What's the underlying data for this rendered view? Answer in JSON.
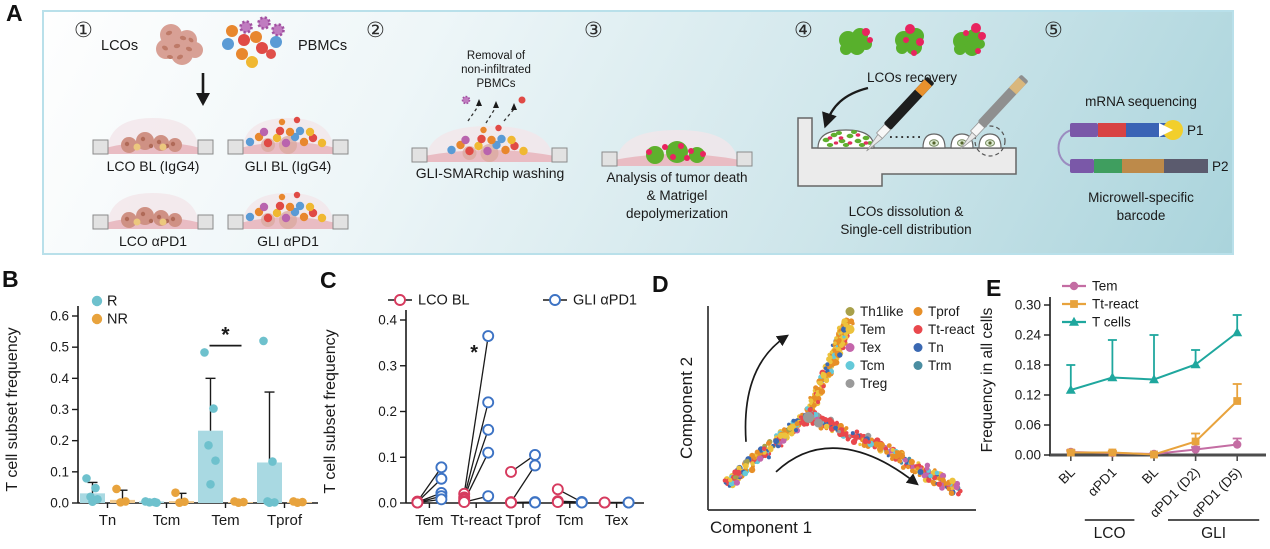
{
  "panels": {
    "a": "A",
    "b": "B",
    "c": "C",
    "d": "D",
    "e": "E"
  },
  "panelA": {
    "steps": [
      "①",
      "②",
      "③",
      "④",
      "⑤"
    ],
    "step1": {
      "lcos": "LCOs",
      "pbmcs": "PBMCs",
      "dishes": [
        "LCO BL (IgG4)",
        "GLI BL (IgG4)",
        "LCO αPD1",
        "GLI αPD1"
      ]
    },
    "step2": {
      "note_lines": [
        "Removal of",
        "non-infiltrated",
        "PBMCs"
      ],
      "label": "GLI-SMARchip washing"
    },
    "step3": {
      "label_lines": [
        "Analysis of tumor death",
        "& Matrigel",
        "depolymerization"
      ]
    },
    "step4": {
      "recovery": "LCOs recovery",
      "dots": "......",
      "label_lines": [
        "LCOs dissolution &",
        "Single-cell distribution"
      ]
    },
    "step5": {
      "title": "mRNA sequencing",
      "p1": "P1",
      "p2": "P2",
      "label_lines": [
        "Microwell-specific",
        "barcode"
      ]
    }
  },
  "chart_data": [
    {
      "id": "B",
      "type": "bar",
      "ylabel": "T cell subset frequency",
      "categories": [
        "Tn",
        "Tcm",
        "Tem",
        "Tprof"
      ],
      "ylim": [
        0,
        0.6
      ],
      "yticks": [
        0.0,
        0.1,
        0.2,
        0.3,
        0.4,
        0.5,
        0.6
      ],
      "legend": [
        {
          "name": "R",
          "color": "#6ec1cd"
        },
        {
          "name": "NR",
          "color": "#e8a33d"
        }
      ],
      "series": [
        {
          "name": "R",
          "bar_color": "#a9d9e2",
          "point_color": "#6ec1cd",
          "bars": [
            0.031,
            0.005,
            0.232,
            0.13
          ],
          "errors_up": [
            0.066,
            0.008,
            0.4,
            0.356
          ],
          "points": [
            [
              0.079,
              0.048,
              0.02,
              0.012,
              0.004
            ],
            [
              0.005,
              0.003,
              0.002,
              0.001
            ],
            [
              0.483,
              0.303,
              0.185,
              0.136,
              0.06
            ],
            [
              0.52,
              0.133,
              0.005,
              0.002,
              0.001
            ]
          ]
        },
        {
          "name": "NR",
          "bar_color": "#f0ca90",
          "point_color": "#e8a33d",
          "bars": [
            0.01,
            0.006,
            0.003,
            0.003
          ],
          "errors_up": [
            0.041,
            0.031,
            0,
            0
          ],
          "points": [
            [
              0.045,
              0.005,
              0.002
            ],
            [
              0.033,
              0.004,
              0.001
            ],
            [
              0.005,
              0.003,
              0.001
            ],
            [
              0.005,
              0.003,
              0.001
            ]
          ]
        }
      ],
      "significance": {
        "category": "Tem",
        "label": "*",
        "y": 0.505
      }
    },
    {
      "id": "C",
      "type": "paired-scatter",
      "ylabel": "T cell subset frequency",
      "categories": [
        "Tem",
        "Tt-react",
        "Tprof",
        "Tcm",
        "Tex"
      ],
      "ylim": [
        0,
        0.4
      ],
      "yticks": [
        0.0,
        0.1,
        0.2,
        0.3,
        0.4
      ],
      "legend": [
        {
          "name": "LCO BL",
          "color": "#d63a5e"
        },
        {
          "name": "GLI αPD1",
          "color": "#3d73c4"
        }
      ],
      "pairs": [
        [
          [
            0.003,
            0.078
          ],
          [
            0.002,
            0.053
          ],
          [
            0.002,
            0.022
          ],
          [
            0.001,
            0.015
          ],
          [
            0.001,
            0.008
          ]
        ],
        [
          [
            0.02,
            0.365
          ],
          [
            0.012,
            0.22
          ],
          [
            0.008,
            0.16
          ],
          [
            0.004,
            0.11
          ],
          [
            0.002,
            0.015
          ]
        ],
        [
          [
            0.068,
            0.105
          ],
          [
            0.002,
            0.082
          ],
          [
            0.001,
            0.002
          ],
          [
            0.001,
            0.001
          ]
        ],
        [
          [
            0.03,
            0.002
          ],
          [
            0.004,
            0.002
          ],
          [
            0.002,
            0.001
          ]
        ],
        [
          [
            0.001,
            0.001
          ],
          [
            0.001,
            0.001
          ]
        ]
      ],
      "significance": {
        "category": "Tt-react",
        "label": "*",
        "y": 0.315
      }
    },
    {
      "id": "D",
      "type": "scatter",
      "subtype": "pseudotime-trajectory",
      "xlabel": "Component 1",
      "ylabel": "Component 2",
      "legend_cols": [
        [
          {
            "name": "Th1like",
            "color": "#a8a04a"
          },
          {
            "name": "Tem",
            "color": "#ecc23d"
          },
          {
            "name": "Tex",
            "color": "#c465ab"
          },
          {
            "name": "Tcm",
            "color": "#64c9d9"
          },
          {
            "name": "Treg",
            "color": "#9a9a9a"
          }
        ],
        [
          {
            "name": "Tprof",
            "color": "#e78f28"
          },
          {
            "name": "Tt-react",
            "color": "#e9484d"
          },
          {
            "name": "Tn",
            "color": "#3a68b2"
          },
          {
            "name": "Trm",
            "color": "#4a8da1"
          }
        ]
      ],
      "junction_dots": [
        [
          37,
          45
        ],
        [
          41,
          42
        ]
      ],
      "branches": [
        {
          "from": [
            5,
            10
          ],
          "to": [
            37,
            46
          ],
          "n": 180,
          "spread": 2.8,
          "palette": {
            "#ecc23d": 0.26,
            "#e78f28": 0.18,
            "#3a68b2": 0.22,
            "#e9484d": 0.14,
            "#64c9d9": 0.07,
            "#a8a04a": 0.06,
            "#c465ab": 0.03,
            "#9a9a9a": 0.04
          }
        },
        {
          "from": [
            37,
            46
          ],
          "to": [
            46,
            74
          ],
          "n": 85,
          "spread": 2.6,
          "palette": {
            "#ecc23d": 0.42,
            "#e78f28": 0.34,
            "#64c9d9": 0.08,
            "#3a68b2": 0.08,
            "#e9484d": 0.08
          }
        },
        {
          "from": [
            46,
            74
          ],
          "to": [
            53,
            96
          ],
          "n": 105,
          "spread": 2.8,
          "palette": {
            "#ecc23d": 0.4,
            "#e78f28": 0.45,
            "#64c9d9": 0.06,
            "#3a68b2": 0.04,
            "#e9484d": 0.05
          }
        },
        {
          "from": [
            37,
            46
          ],
          "to": [
            66,
            29
          ],
          "n": 135,
          "spread": 3.0,
          "palette": {
            "#e9484d": 0.55,
            "#e78f28": 0.15,
            "#ecc23d": 0.1,
            "#3a68b2": 0.08,
            "#9a9a9a": 0.05,
            "#64c9d9": 0.04,
            "#c465ab": 0.03
          }
        },
        {
          "from": [
            66,
            29
          ],
          "to": [
            97,
            6
          ],
          "n": 145,
          "spread": 3.2,
          "palette": {
            "#e78f28": 0.42,
            "#e9484d": 0.16,
            "#c465ab": 0.14,
            "#3a68b2": 0.1,
            "#ecc23d": 0.1,
            "#64c9d9": 0.04,
            "#4a8da1": 0.04
          }
        }
      ],
      "arrows": [
        {
          "from": [
            12,
            32
          ],
          "to": [
            28,
            88
          ]
        },
        {
          "from": [
            24,
            16
          ],
          "to": [
            80,
            10
          ]
        }
      ]
    },
    {
      "id": "E",
      "type": "line",
      "ylabel": "Frequency in all cells",
      "categories": [
        "BL",
        "αPD1",
        "BL",
        "αPD1 (D2)",
        "αPD1 (D5)"
      ],
      "ylim": [
        0,
        0.3
      ],
      "yticks": [
        0.0,
        0.06,
        0.12,
        0.18,
        0.24,
        0.3
      ],
      "groups": [
        {
          "name": "LCO",
          "span": [
            0,
            1
          ]
        },
        {
          "name": "GLI",
          "span": [
            2,
            4
          ]
        }
      ],
      "series": [
        {
          "name": "Tem",
          "color": "#c46da3",
          "marker": "circle",
          "values": [
            0.006,
            0.004,
            0.002,
            0.011,
            0.021
          ],
          "err_up": [
            0.004,
            0.003,
            0.002,
            0.005,
            0.012
          ]
        },
        {
          "name": "Tt-react",
          "color": "#e8a33d",
          "marker": "square",
          "values": [
            0.005,
            0.005,
            0.001,
            0.027,
            0.108
          ],
          "err_up": [
            0.003,
            0.003,
            0.001,
            0.016,
            0.034
          ]
        },
        {
          "name": "T cells",
          "color": "#1fa79e",
          "marker": "triangle",
          "values": [
            0.13,
            0.155,
            0.151,
            0.181,
            0.245
          ],
          "err_up": [
            0.05,
            0.075,
            0.089,
            0.029,
            0.035
          ]
        }
      ]
    }
  ]
}
